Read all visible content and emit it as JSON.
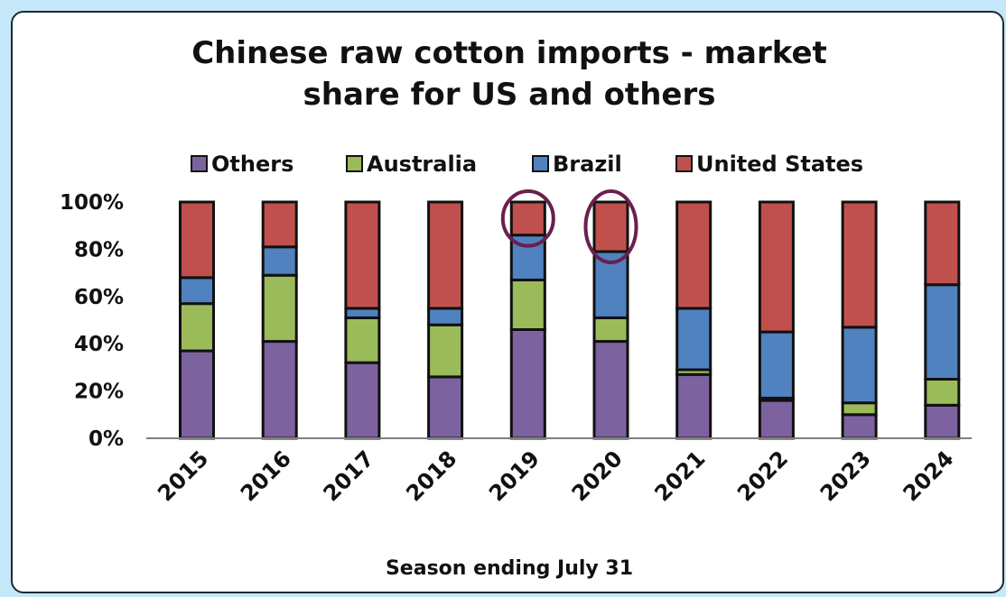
{
  "chart_data": {
    "type": "bar",
    "stacked": true,
    "title_lines": [
      "Chinese raw cotton imports - market",
      "share for US and others"
    ],
    "xlabel": "Season ending July 31",
    "ylabel": "",
    "categories": [
      "2015",
      "2016",
      "2017",
      "2018",
      "2019",
      "2020",
      "2021",
      "2022",
      "2023",
      "2024"
    ],
    "yticks": [
      "0%",
      "20%",
      "40%",
      "60%",
      "80%",
      "100%"
    ],
    "ylim": [
      0,
      100
    ],
    "legend_position": "top",
    "series": [
      {
        "name": "Others",
        "color": "#7d62a0",
        "values": [
          37,
          41,
          32,
          26,
          46,
          41,
          27,
          16,
          10,
          14
        ]
      },
      {
        "name": "Australia",
        "color": "#9bba5a",
        "values": [
          20,
          28,
          19,
          22,
          21,
          10,
          2,
          1,
          5,
          11
        ]
      },
      {
        "name": "Brazil",
        "color": "#4f82bf",
        "values": [
          11,
          12,
          4,
          7,
          19,
          28,
          26,
          28,
          32,
          40
        ]
      },
      {
        "name": "United States",
        "color": "#c0504d",
        "values": [
          32,
          19,
          45,
          45,
          14,
          21,
          45,
          55,
          53,
          35
        ]
      }
    ],
    "annotations": [
      {
        "type": "circle",
        "category": "2019",
        "series": "United States"
      },
      {
        "type": "circle",
        "category": "2020",
        "series": "United States"
      }
    ]
  }
}
